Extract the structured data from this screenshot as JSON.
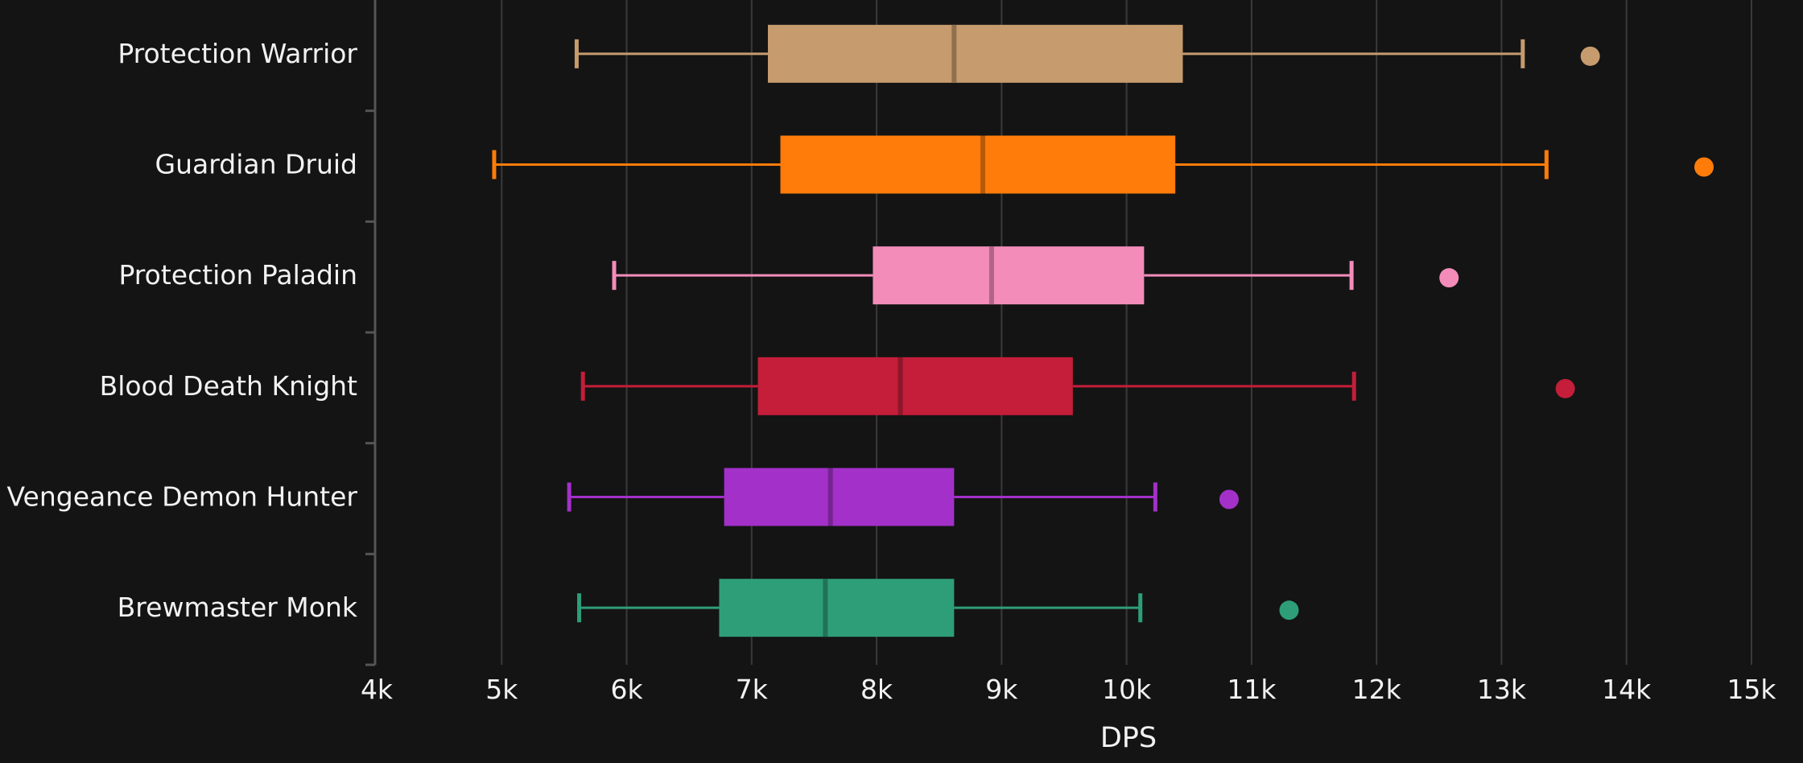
{
  "chart_data": {
    "type": "box",
    "orientation": "horizontal",
    "xlabel": "DPS",
    "xlim": [
      4000,
      15000
    ],
    "x_ticks": [
      {
        "value": 4000,
        "label": "4k"
      },
      {
        "value": 5000,
        "label": "5k"
      },
      {
        "value": 6000,
        "label": "6k"
      },
      {
        "value": 7000,
        "label": "7k"
      },
      {
        "value": 8000,
        "label": "8k"
      },
      {
        "value": 9000,
        "label": "9k"
      },
      {
        "value": 10000,
        "label": "10k"
      },
      {
        "value": 11000,
        "label": "11k"
      },
      {
        "value": 12000,
        "label": "12k"
      },
      {
        "value": 13000,
        "label": "13k"
      },
      {
        "value": 14000,
        "label": "14k"
      },
      {
        "value": 15000,
        "label": "15k"
      }
    ],
    "grid": true,
    "series": [
      {
        "name": "Protection Warrior",
        "color": "#c69b6d",
        "whisker_low": 5600,
        "q1": 7130,
        "median": 8620,
        "q3": 10450,
        "whisker_high": 13170,
        "outliers": [
          13710
        ]
      },
      {
        "name": "Guardian Druid",
        "color": "#ff7c0a",
        "whisker_low": 4940,
        "q1": 7230,
        "median": 8850,
        "q3": 10390,
        "whisker_high": 13360,
        "outliers": [
          14620
        ]
      },
      {
        "name": "Protection Paladin",
        "color": "#f48cba",
        "whisker_low": 5900,
        "q1": 7970,
        "median": 8920,
        "q3": 10140,
        "whisker_high": 11800,
        "outliers": [
          12580
        ]
      },
      {
        "name": "Blood Death Knight",
        "color": "#c41e3a",
        "whisker_low": 5650,
        "q1": 7050,
        "median": 8190,
        "q3": 9570,
        "whisker_high": 11820,
        "outliers": [
          13510
        ]
      },
      {
        "name": "Vengeance Demon Hunter",
        "color": "#a330c9",
        "whisker_low": 5540,
        "q1": 6780,
        "median": 7630,
        "q3": 8620,
        "whisker_high": 10230,
        "outliers": [
          10820
        ]
      },
      {
        "name": "Brewmaster Monk",
        "color": "#2e9e78",
        "whisker_low": 5620,
        "q1": 6740,
        "median": 7590,
        "q3": 8620,
        "whisker_high": 10110,
        "outliers": [
          11300
        ]
      }
    ]
  }
}
